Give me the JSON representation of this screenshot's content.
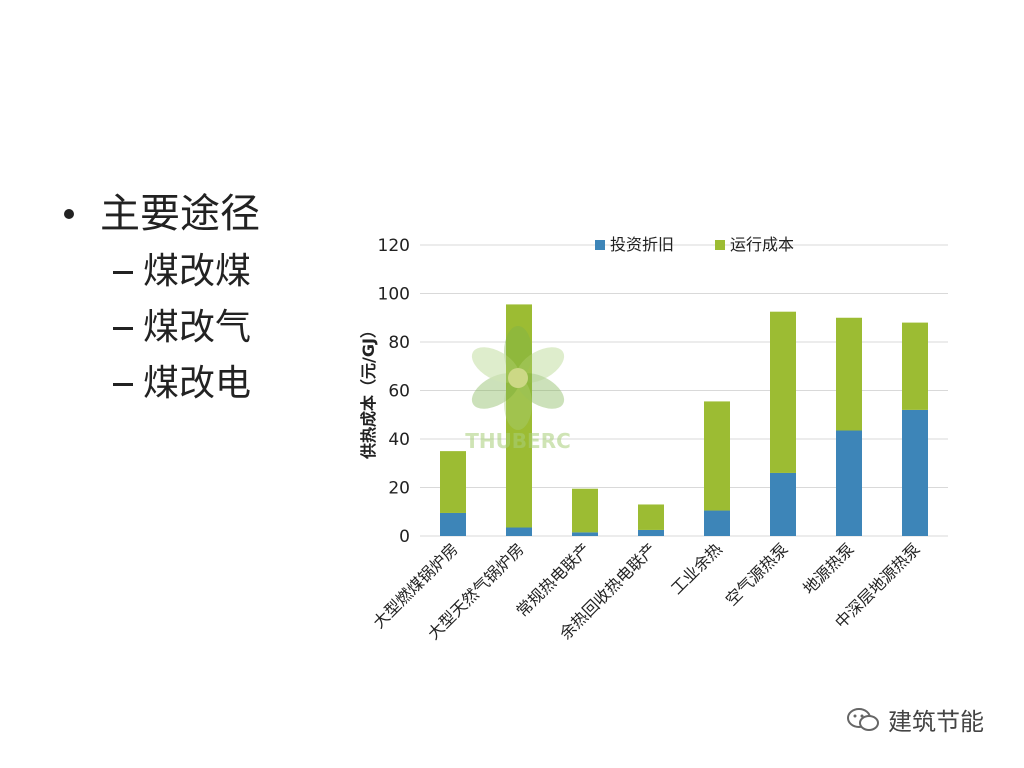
{
  "bullets": {
    "main": "主要途径",
    "items": [
      "煤改煤",
      "煤改气",
      "煤改电"
    ]
  },
  "watermark_text": "THUBERC",
  "brand": "建筑节能",
  "colors": {
    "series1": "#3d85b8",
    "series2": "#9cbc33",
    "grid": "#d9d9d9"
  },
  "chart_data": {
    "type": "bar",
    "stacked": true,
    "categories": [
      "大型燃煤锅炉房",
      "大型天然气锅炉房",
      "常规热电联产",
      "余热回收热电联产",
      "工业余热",
      "空气源热泵",
      "地源热泵",
      "中深层地源热泵"
    ],
    "series": [
      {
        "name": "投资折旧",
        "values": [
          9.5,
          3.5,
          1.5,
          2.5,
          10.5,
          26,
          43.5,
          52
        ]
      },
      {
        "name": "运行成本",
        "values": [
          25.5,
          92,
          18,
          10.5,
          45,
          66.5,
          46.5,
          36
        ]
      }
    ],
    "ylabel": "供热成本（元/GJ）",
    "ylim": [
      0,
      120
    ],
    "yticks": [
      0,
      20,
      40,
      60,
      80,
      100,
      120
    ],
    "grid": true,
    "legend_position": "top"
  }
}
